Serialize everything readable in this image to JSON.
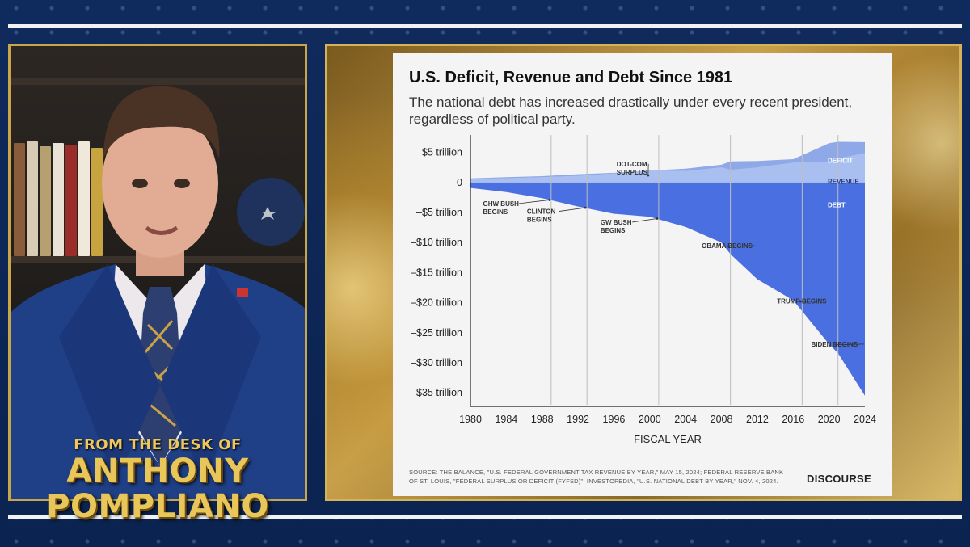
{
  "presenter": {
    "overlay_top": "FROM THE DESK OF",
    "name_first": "ANTHONY",
    "name_last": "POMPLIANO",
    "overlay_color": "#e8c65a",
    "frame_color": "#c9a64a"
  },
  "chart_card": {
    "brand": "DISCOURSE",
    "source": "SOURCE: THE BALANCE, \"U.S. FEDERAL GOVERNMENT TAX REVENUE BY YEAR,\" MAY 15, 2024; FEDERAL RESERVE BANK OF ST. LOUIS, \"FEDERAL SURPLUS OR DEFICIT (FYFSD)\"; INVESTOPEDIA, \"U.S. NATIONAL DEBT BY YEAR,\" NOV. 4, 2024."
  },
  "chart_data": {
    "type": "area",
    "title": "U.S. Deficit, Revenue and Debt Since 1981",
    "subtitle": "The national debt has increased drastically under every recent president, regardless of political party.",
    "xlabel": "FISCAL YEAR",
    "ylabel": "",
    "xlim": [
      1980,
      2024
    ],
    "ylim": [
      -37,
      5.5
    ],
    "x_ticks": [
      1980,
      1984,
      1988,
      1992,
      1996,
      2000,
      2004,
      2008,
      2012,
      2016,
      2020,
      2024
    ],
    "y_ticks": [
      {
        "value": 5,
        "label": "$5 trillion"
      },
      {
        "value": 0,
        "label": "0"
      },
      {
        "value": -5,
        "label": "–$5 trillion"
      },
      {
        "value": -10,
        "label": "–$10 trillion"
      },
      {
        "value": -15,
        "label": "–$15 trillion"
      },
      {
        "value": -20,
        "label": "–$20 trillion"
      },
      {
        "value": -25,
        "label": "–$25 trillion"
      },
      {
        "value": -30,
        "label": "–$30 trillion"
      },
      {
        "value": -35,
        "label": "–$35 trillion"
      }
    ],
    "vertical_lines": [
      1989,
      1993,
      2001,
      2009,
      2017,
      2021
    ],
    "colors": {
      "revenue": "#a9bff0",
      "deficit": "#8ea8e8",
      "debt": "#4a6fe0",
      "axis": "#222222",
      "grid": "#bdbdbd"
    },
    "x": [
      1980,
      1984,
      1988,
      1992,
      1996,
      2000,
      2004,
      2008,
      2009,
      2012,
      2016,
      2020,
      2021,
      2024
    ],
    "series": [
      {
        "name": "REVENUE",
        "values": [
          0.6,
          0.7,
          0.9,
          1.1,
          1.5,
          2.0,
          1.9,
          2.5,
          2.1,
          2.5,
          3.3,
          3.4,
          4.0,
          4.9
        ]
      },
      {
        "name": "DEFICIT",
        "values": [
          0.08,
          0.19,
          0.16,
          0.29,
          0.11,
          -0.24,
          0.41,
          0.46,
          1.41,
          1.08,
          0.59,
          3.13,
          2.78,
          1.83
        ]
      },
      {
        "name": "DEBT",
        "values": [
          -0.9,
          -1.6,
          -2.6,
          -4.0,
          -5.2,
          -5.7,
          -7.4,
          -10.0,
          -11.9,
          -16.1,
          -19.6,
          -26.9,
          -28.4,
          -35.5
        ]
      }
    ],
    "annotations": [
      {
        "text": "DOT-COM\nSURPLUS",
        "x": 2000,
        "y": 1.2,
        "tx": 1996.3,
        "ty": 2.7,
        "align": "start"
      },
      {
        "text": "GHW BUSH\nBEGINS",
        "x": 1989,
        "y": -2.9,
        "tx": 1981.4,
        "ty": -3.9,
        "align": "start"
      },
      {
        "text": "CLINTON\nBEGINS",
        "x": 1993,
        "y": -4.2,
        "tx": 1986.3,
        "ty": -5.2,
        "align": "start"
      },
      {
        "text": "GW BUSH\nBEGINS",
        "x": 2001,
        "y": -6.0,
        "tx": 1994.5,
        "ty": -7.0,
        "align": "start"
      },
      {
        "text": "OBAMA BEGINS",
        "x": 2009,
        "y": -10.6,
        "tx": 2005.8,
        "ty": -10.9,
        "align": "end"
      },
      {
        "text": "TRUMP BEGINS",
        "x": 2017,
        "y": -19.8,
        "tx": 2014.2,
        "ty": -20.1,
        "align": "end"
      },
      {
        "text": "BIDEN BEGINS",
        "x": 2021,
        "y": -27.0,
        "tx": 2018.0,
        "ty": -27.3,
        "align": "end"
      }
    ],
    "series_labels": [
      {
        "text": "DEFICIT",
        "x": 2024,
        "y": 4.9,
        "color": "#ffffff"
      },
      {
        "text": "REVENUE",
        "x": 2024,
        "y": 1.4,
        "color": "#2a3f80"
      },
      {
        "text": "DEBT",
        "x": 2024,
        "y": -2.5,
        "color": "#ffffff"
      }
    ]
  }
}
